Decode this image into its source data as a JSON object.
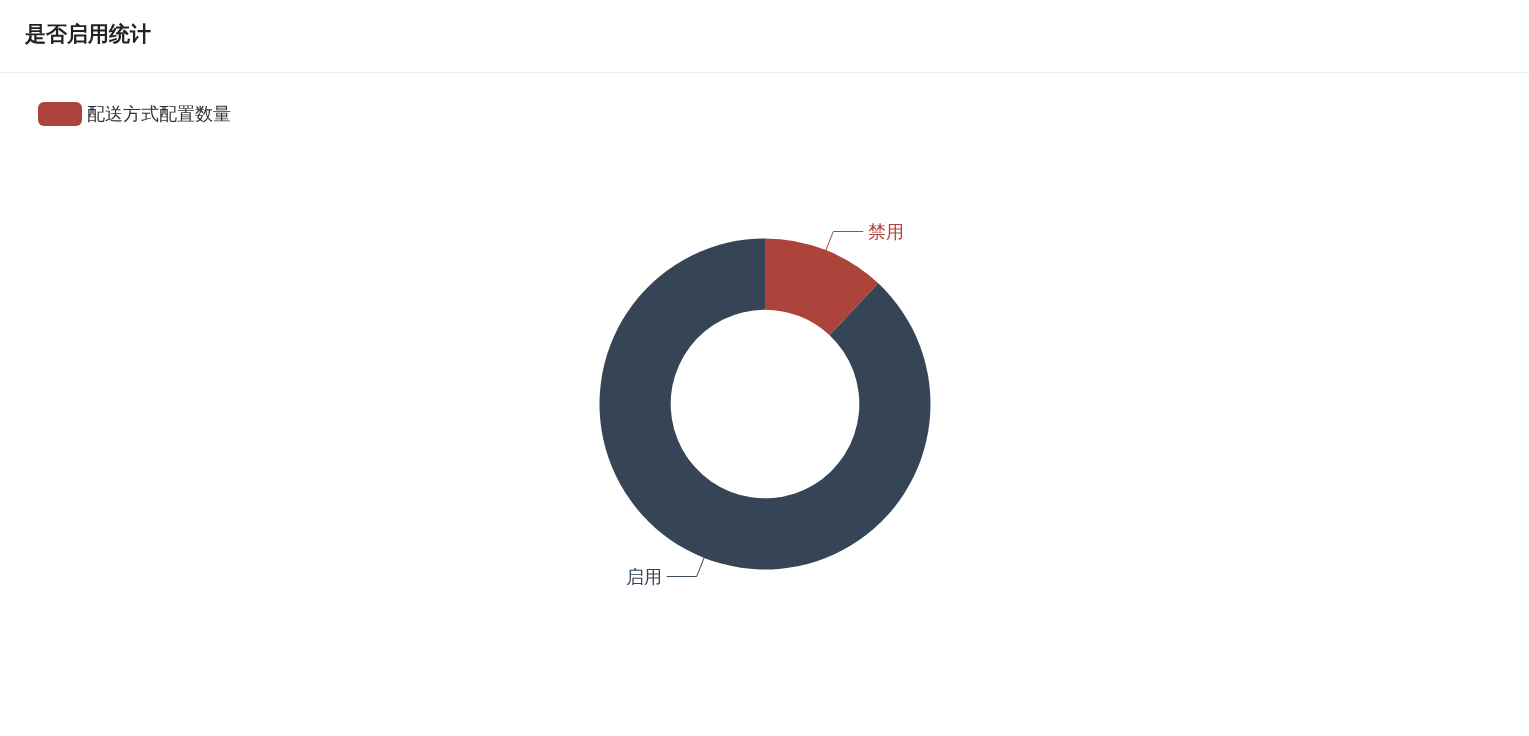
{
  "chart_data": {
    "type": "donut",
    "title": "是否启用统计",
    "categories": [
      "禁用",
      "启用"
    ],
    "series": [
      {
        "name": "配送方式配置数量",
        "values": [
          12,
          88
        ],
        "colors": [
          "#ad443c",
          "#364556"
        ]
      }
    ],
    "legend": "top left"
  }
}
